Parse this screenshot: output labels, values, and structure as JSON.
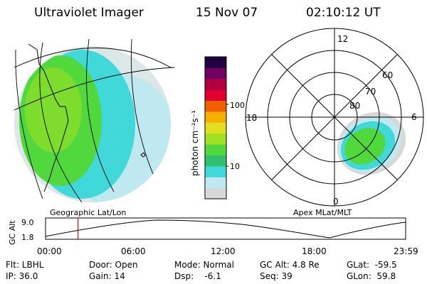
{
  "header": {
    "instrument": "Ultraviolet Imager",
    "date": "15 Nov 07",
    "time": "02:10:12 UT"
  },
  "colorbar": {
    "unit_label": "photon cm⁻²s⁻¹",
    "ticks": [
      "100",
      "10"
    ],
    "colors": [
      "#d8d8d8",
      "#bfe8f0",
      "#40d8d8",
      "#30c070",
      "#50d83c",
      "#a0e020",
      "#e0e020",
      "#f8b000",
      "#f06000",
      "#e00030",
      "#b00040",
      "#700060",
      "#200040"
    ]
  },
  "left_map": {
    "caption": "Geographic Lat/Lon"
  },
  "polar_map": {
    "caption": "Apex MLat/MLT",
    "lat_labels": [
      "60",
      "70",
      "80"
    ],
    "mlt_labels": {
      "top": "12",
      "left": "18",
      "right": "6",
      "bottom": "0"
    }
  },
  "altitude_plot": {
    "ylabel": "GC Alt",
    "yticks": [
      "9.0",
      "1.8"
    ],
    "xticks": [
      "00:00",
      "06:00",
      "12:00",
      "18:00",
      "23:59"
    ],
    "marker_time": "02:10",
    "marker_color": "#e00000"
  },
  "status": {
    "flt": "Flt: LBHL",
    "ip": "IP: 36.0",
    "door": "Door: Open",
    "gain": "Gain: 14",
    "mode": "Mode: Normal",
    "dsp": "Dsp:    -6.1",
    "gc_alt": "GC Alt: 4.8 Re",
    "seq": "Seq: 39",
    "glat": "GLat:  -59.5",
    "glon": "GLon:  59.8"
  }
}
